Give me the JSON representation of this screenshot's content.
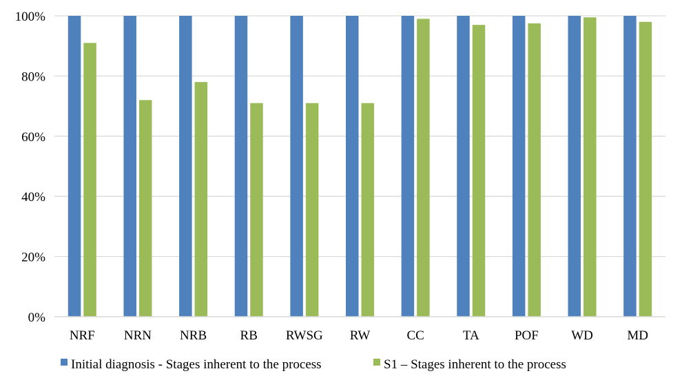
{
  "chart_data": {
    "type": "bar",
    "title": "",
    "xlabel": "",
    "ylabel": "",
    "categories": [
      "NRF",
      "NRN",
      "NRB",
      "RB",
      "RWSG",
      "RW",
      "CC",
      "TA",
      "POF",
      "WD",
      "MD"
    ],
    "series": [
      {
        "name": "Initial diagnosis - Stages inherent to the process",
        "color": "#4F81BD",
        "values": [
          100,
          100,
          100,
          100,
          100,
          100,
          100,
          100,
          100,
          100,
          100
        ]
      },
      {
        "name": "S1 – Stages inherent to the process",
        "color": "#9BBB59",
        "values": [
          91,
          72,
          78,
          71,
          71,
          71,
          99,
          97,
          97.5,
          99.5,
          98
        ]
      }
    ],
    "ylim": [
      0,
      100
    ],
    "yticks": [
      0,
      20,
      40,
      60,
      80,
      100
    ],
    "ytick_labels": [
      "0%",
      "20%",
      "40%",
      "60%",
      "80%",
      "100%"
    ],
    "grid": true,
    "legend_position": "bottom"
  }
}
